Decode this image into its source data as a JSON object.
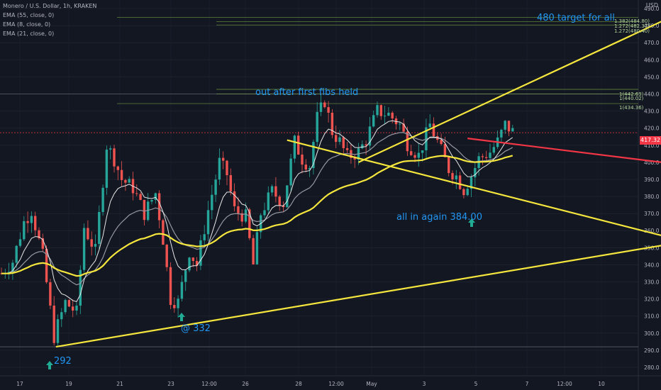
{
  "legend": {
    "symbol": "Monero / U.S. Dollar, 1h, KRAKEN",
    "ema1": "EMA (55, close, 0)",
    "ema2": "EMA (8, close, 0)",
    "ema3": "EMA (21, close, 0)"
  },
  "annotations": {
    "target": "480 target for all",
    "out": "out after first fibs held",
    "allin": "all in again 384.00",
    "low332": "@ 332",
    "low292": "292"
  },
  "fib_labels": {
    "f1": "1.382(484.80)",
    "f2": "1.272(482.37)",
    "f3": "1.272(480.40)",
    "f4": "1(442.69)",
    "f5": "1(440.02)",
    "f6": "1(434.36)"
  },
  "colors": {
    "background": "#131722",
    "up": "#26a69a",
    "down": "#ef5350",
    "ema55": "#f5e63d",
    "ema21": "#9598a1",
    "ema8": "#e8e8e8",
    "trendline": "#f5e63d",
    "resistance": "#f23645",
    "annotation": "#2196f3",
    "arrow": "#22ab94"
  },
  "chart_data": {
    "type": "candlestick",
    "yaxis_title": "USD",
    "ylim": [
      275,
      495
    ],
    "yticks": [
      280,
      290,
      300,
      310,
      320,
      330,
      340,
      350,
      360,
      370,
      380,
      390,
      400,
      410,
      420,
      430,
      440,
      450,
      460,
      470,
      480,
      490
    ],
    "xticks": [
      "17",
      "19",
      "21",
      "23",
      "12:00",
      "26",
      "28",
      "12:00",
      "May",
      "3",
      "5",
      "7",
      "12:00",
      "10",
      "12:00"
    ],
    "last_price": "417.32",
    "price_path": [
      [
        0,
        335
      ],
      [
        3,
        342
      ],
      [
        6,
        365
      ],
      [
        8,
        372
      ],
      [
        11,
        345
      ],
      [
        14,
        298
      ],
      [
        17,
        318
      ],
      [
        20,
        312
      ],
      [
        22,
        362
      ],
      [
        25,
        348
      ],
      [
        28,
        410
      ],
      [
        30,
        402
      ],
      [
        32,
        390
      ],
      [
        35,
        385
      ],
      [
        38,
        370
      ],
      [
        41,
        382
      ],
      [
        43,
        355
      ],
      [
        45,
        320
      ],
      [
        47,
        318
      ],
      [
        50,
        348
      ],
      [
        52,
        340
      ],
      [
        55,
        372
      ],
      [
        58,
        400
      ],
      [
        60,
        393
      ],
      [
        62,
        372
      ],
      [
        65,
        368
      ],
      [
        67,
        340
      ],
      [
        69,
        370
      ],
      [
        72,
        383
      ],
      [
        75,
        376
      ],
      [
        78,
        412
      ],
      [
        80,
        402
      ],
      [
        82,
        398
      ],
      [
        84,
        426
      ],
      [
        86,
        436
      ],
      [
        88,
        418
      ],
      [
        90,
        412
      ],
      [
        92,
        403
      ],
      [
        95,
        406
      ],
      [
        97,
        413
      ],
      [
        100,
        430
      ],
      [
        103,
        428
      ],
      [
        106,
        422
      ],
      [
        108,
        411
      ],
      [
        111,
        404
      ],
      [
        114,
        422
      ],
      [
        116,
        412
      ],
      [
        119,
        396
      ],
      [
        121,
        392
      ],
      [
        123,
        384
      ],
      [
        125,
        392
      ],
      [
        127,
        402
      ],
      [
        130,
        406
      ],
      [
        132,
        412
      ],
      [
        134,
        422
      ],
      [
        136,
        418
      ]
    ],
    "candle_count": 137,
    "fib_levels": [
      484.8,
      482.37,
      480.4,
      442.69,
      440.02,
      434.36
    ],
    "horizontal_lines": [
      417.32,
      292
    ],
    "trendlines": [
      {
        "from": [
          14.5,
          292
        ],
        "to": [
          183,
          354
        ]
      },
      {
        "from": [
          76,
          413
        ],
        "to": [
          183,
          353
        ]
      },
      {
        "from": [
          95,
          400
        ],
        "to": [
          183,
          490
        ]
      }
    ],
    "resistance_line": {
      "from": [
        124,
        414
      ],
      "to": [
        183,
        398
      ]
    }
  }
}
